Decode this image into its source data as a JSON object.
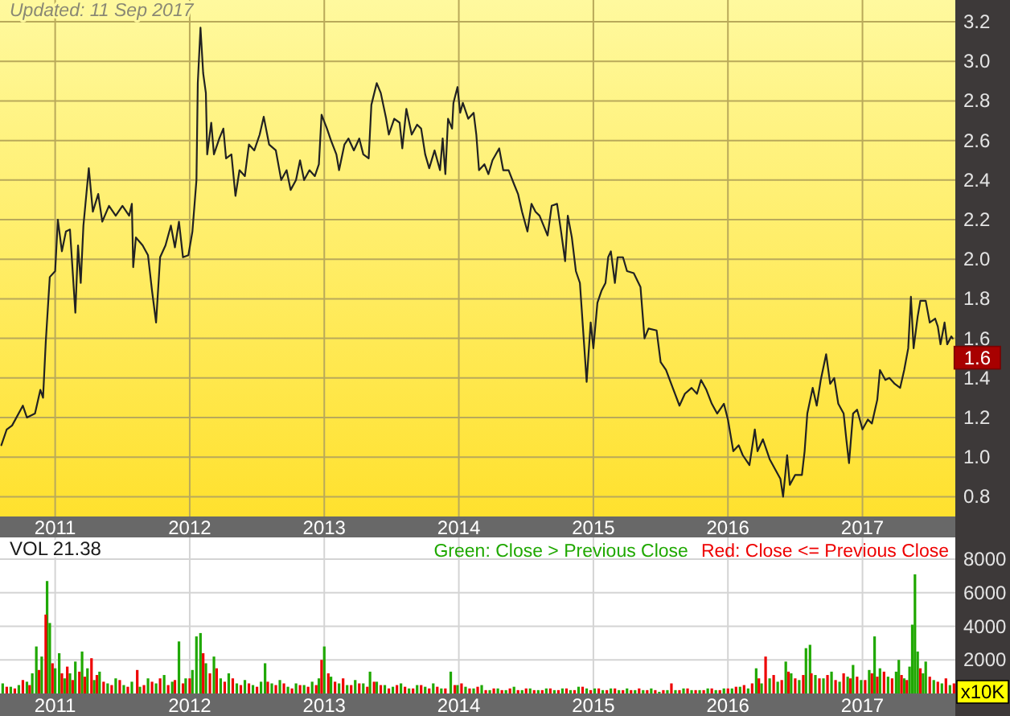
{
  "chart_data": [
    {
      "type": "line",
      "annotations": [
        "Updated: 11 Sep 2017",
        {
          "text": "1.6",
          "x": 2017.67,
          "y": 1.6
        }
      ],
      "x": [
        2010.6,
        2010.64,
        2010.68,
        2010.76,
        2010.79,
        2010.85,
        2010.89,
        2010.91,
        2010.93,
        2010.96,
        2011.0,
        2011.02,
        2011.05,
        2011.08,
        2011.11,
        2011.15,
        2011.17,
        2011.19,
        2011.21,
        2011.25,
        2011.28,
        2011.32,
        2011.35,
        2011.4,
        2011.45,
        2011.5,
        2011.55,
        2011.57,
        2011.58,
        2011.6,
        2011.65,
        2011.69,
        2011.72,
        2011.75,
        2011.78,
        2011.82,
        2011.86,
        2011.89,
        2011.92,
        2011.95,
        2011.99,
        2012.02,
        2012.05,
        2012.06,
        2012.08,
        2012.1,
        2012.12,
        2012.13,
        2012.16,
        2012.18,
        2012.22,
        2012.25,
        2012.27,
        2012.31,
        2012.34,
        2012.37,
        2012.41,
        2012.44,
        2012.48,
        2012.52,
        2012.55,
        2012.59,
        2012.64,
        2012.68,
        2012.72,
        2012.75,
        2012.79,
        2012.82,
        2012.85,
        2012.89,
        2012.93,
        2012.96,
        2012.98,
        2013.02,
        2013.05,
        2013.09,
        2013.11,
        2013.15,
        2013.18,
        2013.22,
        2013.26,
        2013.29,
        2013.33,
        2013.35,
        2013.39,
        2013.42,
        2013.46,
        2013.48,
        2013.52,
        2013.56,
        2013.58,
        2013.61,
        2013.65,
        2013.69,
        2013.72,
        2013.75,
        2013.78,
        2013.82,
        2013.86,
        2013.88,
        2013.9,
        2013.92,
        2013.95,
        2013.96,
        2013.99,
        2014.01,
        2014.03,
        2014.07,
        2014.11,
        2014.13,
        2014.15,
        2014.19,
        2014.22,
        2014.25,
        2014.3,
        2014.33,
        2014.37,
        2014.41,
        2014.44,
        2014.47,
        2014.51,
        2014.54,
        2014.57,
        2014.6,
        2014.63,
        2014.66,
        2014.69,
        2014.73,
        2014.76,
        2014.79,
        2014.81,
        2014.84,
        2014.87,
        2014.9,
        2014.92,
        2014.95,
        2014.98,
        2015.0,
        2015.03,
        2015.06,
        2015.09,
        2015.11,
        2015.13,
        2015.16,
        2015.18,
        2015.22,
        2015.25,
        2015.3,
        2015.35,
        2015.38,
        2015.41,
        2015.47,
        2015.5,
        2015.54,
        2015.59,
        2015.64,
        2015.68,
        2015.73,
        2015.77,
        2015.8,
        2015.84,
        2015.88,
        2015.92,
        2015.97,
        2016.0,
        2016.04,
        2016.08,
        2016.11,
        2016.16,
        2016.2,
        2016.22,
        2016.26,
        2016.31,
        2016.35,
        2016.39,
        2016.41,
        2016.44,
        2016.46,
        2016.5,
        2016.55,
        2016.57,
        2016.59,
        2016.63,
        2016.66,
        2016.69,
        2016.73,
        2016.76,
        2016.79,
        2016.82,
        2016.86,
        2016.88,
        2016.9,
        2016.93,
        2016.96,
        2017.0,
        2017.04,
        2017.07,
        2017.11,
        2017.13,
        2017.17,
        2017.2,
        2017.24,
        2017.28,
        2017.31,
        2017.34,
        2017.36,
        2017.38,
        2017.41,
        2017.43,
        2017.47,
        2017.5,
        2017.54,
        2017.56,
        2017.58,
        2017.61,
        2017.63,
        2017.66,
        2017.67
      ],
      "series": [
        {
          "color": "#222222",
          "values": [
            1.06,
            1.14,
            1.16,
            1.26,
            1.2,
            1.22,
            1.34,
            1.3,
            1.58,
            1.91,
            1.94,
            2.2,
            2.04,
            2.14,
            2.15,
            1.73,
            2.07,
            1.88,
            2.17,
            2.46,
            2.24,
            2.33,
            2.19,
            2.27,
            2.22,
            2.27,
            2.22,
            2.28,
            1.96,
            2.11,
            2.07,
            2.02,
            1.84,
            1.68,
            2.01,
            2.07,
            2.17,
            2.06,
            2.19,
            2.01,
            2.02,
            2.14,
            2.4,
            2.89,
            3.17,
            2.94,
            2.84,
            2.53,
            2.69,
            2.53,
            2.61,
            2.66,
            2.51,
            2.53,
            2.32,
            2.45,
            2.42,
            2.58,
            2.55,
            2.63,
            2.72,
            2.58,
            2.55,
            2.4,
            2.45,
            2.35,
            2.4,
            2.5,
            2.4,
            2.45,
            2.42,
            2.48,
            2.73,
            2.66,
            2.6,
            2.53,
            2.45,
            2.58,
            2.61,
            2.55,
            2.61,
            2.53,
            2.51,
            2.78,
            2.89,
            2.84,
            2.71,
            2.63,
            2.71,
            2.69,
            2.56,
            2.76,
            2.63,
            2.68,
            2.66,
            2.53,
            2.46,
            2.55,
            2.45,
            2.61,
            2.43,
            2.71,
            2.66,
            2.79,
            2.87,
            2.74,
            2.79,
            2.71,
            2.74,
            2.63,
            2.45,
            2.48,
            2.43,
            2.5,
            2.56,
            2.45,
            2.45,
            2.38,
            2.33,
            2.24,
            2.14,
            2.28,
            2.24,
            2.22,
            2.17,
            2.12,
            2.27,
            2.28,
            2.14,
            1.99,
            2.22,
            2.11,
            1.94,
            1.88,
            1.68,
            1.38,
            1.68,
            1.55,
            1.78,
            1.84,
            1.88,
            2.01,
            2.04,
            1.88,
            2.01,
            2.01,
            1.94,
            1.93,
            1.86,
            1.6,
            1.65,
            1.64,
            1.48,
            1.44,
            1.35,
            1.26,
            1.32,
            1.35,
            1.32,
            1.39,
            1.34,
            1.27,
            1.22,
            1.27,
            1.19,
            1.03,
            1.06,
            1.01,
            0.96,
            1.14,
            1.03,
            1.09,
            0.99,
            0.94,
            0.89,
            0.8,
            1.01,
            0.86,
            0.91,
            0.91,
            1.03,
            1.22,
            1.35,
            1.26,
            1.39,
            1.52,
            1.37,
            1.4,
            1.27,
            1.22,
            1.09,
            0.97,
            1.22,
            1.24,
            1.14,
            1.19,
            1.17,
            1.29,
            1.44,
            1.39,
            1.4,
            1.37,
            1.35,
            1.44,
            1.55,
            1.81,
            1.55,
            1.71,
            1.79,
            1.79,
            1.68,
            1.7,
            1.66,
            1.57,
            1.68,
            1.57,
            1.61,
            1.6
          ]
        }
      ],
      "xlim": [
        2010.59,
        2017.69
      ],
      "xticks": [
        2011,
        2012,
        2013,
        2014,
        2015,
        2016,
        2017
      ],
      "ylim": [
        0.7,
        3.31
      ],
      "yticks": [
        0.8,
        {
          "value": 1,
          "label": "1.0"
        },
        1.2,
        1.4,
        1.6,
        1.8,
        {
          "value": 2,
          "label": "2.0"
        },
        2.2,
        2.4,
        2.6,
        2.8,
        {
          "value": 3,
          "label": "3.0"
        },
        3.2
      ],
      "grid": true
    },
    {
      "type": "bar",
      "annotations": [
        "VOL 21.38"
      ],
      "ylabel": "x10K",
      "series": [
        {
          "name": "Green: Close > Previous Close",
          "color": "#1fa800",
          "x": [
            2010.61,
            2010.67,
            2010.73,
            2010.79,
            2010.83,
            2010.86,
            2010.9,
            2010.94,
            2010.96,
            2011.0,
            2011.03,
            2011.07,
            2011.11,
            2011.15,
            2011.2,
            2011.24,
            2011.29,
            2011.33,
            2011.39,
            2011.45,
            2011.51,
            2011.57,
            2011.63,
            2011.69,
            2011.75,
            2011.81,
            2011.87,
            2011.92,
            2011.97,
            2012.02,
            2012.05,
            2012.08,
            2012.12,
            2012.18,
            2012.23,
            2012.29,
            2012.35,
            2012.41,
            2012.47,
            2012.53,
            2012.56,
            2012.61,
            2012.67,
            2012.73,
            2012.79,
            2012.85,
            2012.91,
            2012.96,
            2013.0,
            2013.05,
            2013.11,
            2013.17,
            2013.23,
            2013.29,
            2013.34,
            2013.39,
            2013.45,
            2013.51,
            2013.57,
            2013.63,
            2013.69,
            2013.75,
            2013.81,
            2013.87,
            2013.94,
            2013.99,
            2014.05,
            2014.11,
            2014.17,
            2014.23,
            2014.29,
            2014.35,
            2014.41,
            2014.47,
            2014.53,
            2014.59,
            2014.65,
            2014.71,
            2014.77,
            2014.83,
            2014.89,
            2014.95,
            2015.01,
            2015.07,
            2015.13,
            2015.19,
            2015.25,
            2015.31,
            2015.37,
            2015.43,
            2015.49,
            2015.55,
            2015.61,
            2015.67,
            2015.73,
            2015.79,
            2015.85,
            2015.91,
            2015.97,
            2016.03,
            2016.09,
            2016.15,
            2016.21,
            2016.25,
            2016.31,
            2016.37,
            2016.43,
            2016.47,
            2016.53,
            2016.58,
            2016.61,
            2016.65,
            2016.71,
            2016.77,
            2016.83,
            2016.89,
            2016.93,
            2016.99,
            2017.05,
            2017.09,
            2017.13,
            2017.19,
            2017.25,
            2017.27,
            2017.31,
            2017.35,
            2017.37,
            2017.39,
            2017.41,
            2017.45,
            2017.47,
            2017.53,
            2017.59,
            2017.65
          ],
          "values": [
            600,
            400,
            500,
            700,
            1200,
            2800,
            2200,
            6700,
            4200,
            1500,
            2400,
            900,
            1200,
            1900,
            2500,
            1500,
            800,
            1300,
            600,
            900,
            500,
            700,
            400,
            900,
            600,
            1100,
            700,
            3100,
            900,
            1400,
            3400,
            3600,
            1800,
            2200,
            900,
            1200,
            600,
            800,
            500,
            700,
            1800,
            600,
            800,
            400,
            600,
            500,
            700,
            900,
            2800,
            1000,
            600,
            500,
            800,
            600,
            1300,
            700,
            500,
            400,
            600,
            300,
            500,
            400,
            600,
            300,
            1300,
            500,
            400,
            300,
            500,
            200,
            300,
            200,
            400,
            200,
            300,
            200,
            300,
            200,
            300,
            200,
            400,
            300,
            300,
            200,
            300,
            200,
            300,
            200,
            200,
            300,
            100,
            200,
            200,
            300,
            200,
            200,
            300,
            200,
            300,
            300,
            400,
            300,
            1500,
            600,
            900,
            700,
            1900,
            1200,
            800,
            2700,
            2900,
            1100,
            900,
            1300,
            700,
            1000,
            1700,
            800,
            1400,
            3400,
            1500,
            1000,
            1300,
            2000,
            900,
            1600,
            4100,
            7100,
            2500,
            1200,
            1900,
            800,
            600,
            500
          ]
        },
        {
          "name": "Red: Close <= Previous Close",
          "color": "#ee0000",
          "x": [
            2010.64,
            2010.7,
            2010.76,
            2010.81,
            2010.88,
            2010.93,
            2010.98,
            2011.05,
            2011.09,
            2011.13,
            2011.18,
            2011.22,
            2011.27,
            2011.31,
            2011.36,
            2011.42,
            2011.48,
            2011.54,
            2011.61,
            2011.66,
            2011.72,
            2011.78,
            2011.84,
            2011.89,
            2011.95,
            2012.0,
            2012.1,
            2012.15,
            2012.2,
            2012.26,
            2012.32,
            2012.38,
            2012.44,
            2012.5,
            2012.58,
            2012.64,
            2012.7,
            2012.76,
            2012.82,
            2012.88,
            2012.94,
            2012.98,
            2013.03,
            2013.08,
            2013.14,
            2013.2,
            2013.26,
            2013.32,
            2013.37,
            2013.42,
            2013.48,
            2013.54,
            2013.6,
            2013.66,
            2013.72,
            2013.78,
            2013.84,
            2013.9,
            2013.97,
            2014.02,
            2014.08,
            2014.14,
            2014.2,
            2014.26,
            2014.32,
            2014.38,
            2014.44,
            2014.5,
            2014.56,
            2014.62,
            2014.68,
            2014.74,
            2014.8,
            2014.86,
            2014.92,
            2014.98,
            2015.04,
            2015.1,
            2015.16,
            2015.22,
            2015.28,
            2015.34,
            2015.4,
            2015.46,
            2015.52,
            2015.58,
            2015.64,
            2015.7,
            2015.76,
            2015.82,
            2015.88,
            2015.94,
            2016.0,
            2016.06,
            2016.12,
            2016.18,
            2016.23,
            2016.28,
            2016.34,
            2016.4,
            2016.45,
            2016.5,
            2016.56,
            2016.62,
            2016.68,
            2016.74,
            2016.8,
            2016.86,
            2016.91,
            2016.96,
            2017.02,
            2017.07,
            2017.11,
            2017.16,
            2017.22,
            2017.29,
            2017.33,
            2017.43,
            2017.5,
            2017.56,
            2017.62,
            2017.68
          ],
          "values": [
            400,
            300,
            800,
            500,
            1400,
            4700,
            1800,
            1200,
            1600,
            800,
            1300,
            1000,
            2100,
            1100,
            700,
            500,
            800,
            400,
            1400,
            500,
            700,
            900,
            500,
            800,
            600,
            900,
            2400,
            1200,
            1500,
            700,
            900,
            500,
            600,
            400,
            700,
            500,
            600,
            300,
            500,
            400,
            500,
            2000,
            1200,
            700,
            900,
            500,
            600,
            400,
            700,
            500,
            300,
            500,
            400,
            300,
            500,
            300,
            400,
            300,
            500,
            600,
            300,
            400,
            200,
            300,
            200,
            300,
            200,
            300,
            200,
            200,
            300,
            200,
            300,
            200,
            400,
            200,
            300,
            200,
            300,
            200,
            200,
            300,
            200,
            200,
            200,
            600,
            200,
            300,
            200,
            200,
            300,
            200,
            300,
            400,
            500,
            600,
            900,
            2200,
            1100,
            800,
            1300,
            900,
            1100,
            1200,
            900,
            1100,
            800,
            1200,
            900,
            1000,
            800,
            1200,
            1000,
            1300,
            900,
            1100,
            800,
            1500,
            1000,
            700,
            900,
            600
          ]
        }
      ],
      "xlim": [
        2010.59,
        2017.69
      ],
      "xticks": [
        2011,
        2012,
        2013,
        2014,
        2015,
        2016,
        2017
      ],
      "ylim": [
        0,
        9300
      ],
      "yticks": [
        2000,
        4000,
        6000,
        8000
      ],
      "grid": true,
      "legend": "top right"
    }
  ]
}
